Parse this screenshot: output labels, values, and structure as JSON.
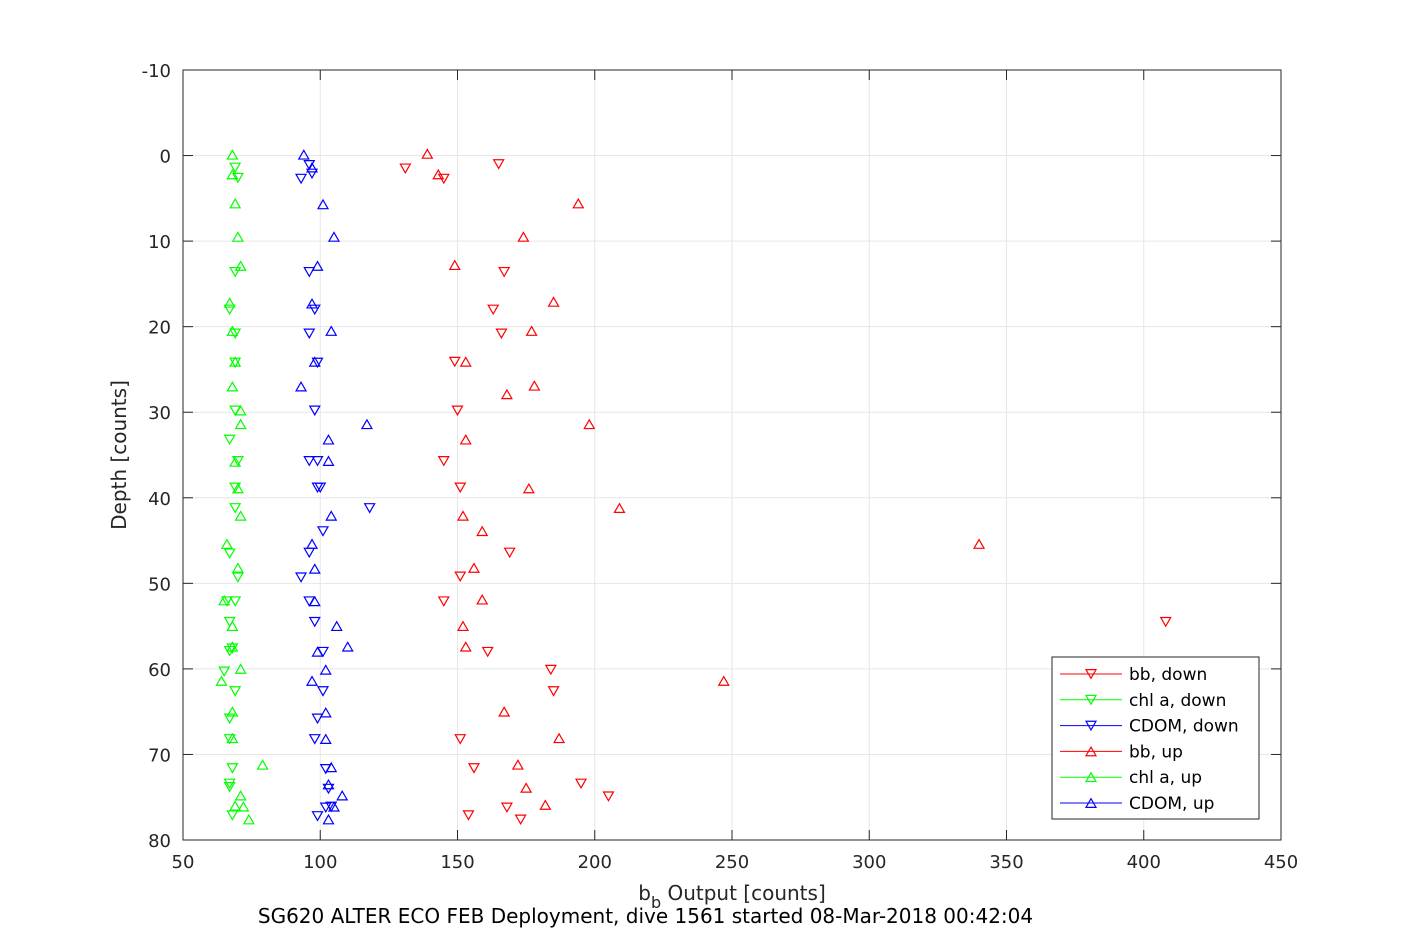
{
  "chart_data": {
    "type": "scatter",
    "xlabel_main": "b",
    "xlabel_sub": "b",
    "xlabel_rest": " Output [counts]",
    "ylabel": "Depth [counts]",
    "xlim": [
      50,
      450
    ],
    "ylim": [
      -10,
      80
    ],
    "y_reversed": true,
    "grid": true,
    "legend_position": "bottom-right",
    "x_ticks": [
      "50",
      "100",
      "150",
      "200",
      "250",
      "300",
      "350",
      "400",
      "450"
    ],
    "y_ticks": [
      "-10",
      "0",
      "10",
      "20",
      "30",
      "40",
      "50",
      "60",
      "70",
      "80"
    ],
    "series": [
      {
        "name": "bb, down",
        "color": "#ff0000",
        "marker": "triangle-down",
        "x": [
          131,
          145,
          165,
          167,
          163,
          166,
          149,
          150,
          145,
          151,
          151,
          169,
          145,
          408,
          161,
          184,
          185,
          151,
          156,
          195,
          205,
          168,
          173,
          154
        ],
        "y": [
          1.5,
          2.7,
          1,
          13.6,
          18,
          20.8,
          24.1,
          29.8,
          35.7,
          38.8,
          49.2,
          46.4,
          52.1,
          54.5,
          58,
          60.1,
          62.6,
          68.2,
          71.6,
          73.4,
          74.9,
          76.2,
          77.6,
          77.1
        ]
      },
      {
        "name": "chl a, down",
        "color": "#00ff00",
        "marker": "triangle-down",
        "x": [
          69,
          70,
          69,
          67,
          69,
          69,
          69,
          70,
          67,
          69,
          69,
          70,
          69,
          67,
          67,
          66,
          68,
          67,
          65,
          69,
          67,
          67,
          68,
          67,
          67,
          68
        ],
        "y": [
          1.4,
          2.6,
          13.6,
          18,
          20.8,
          24.2,
          29.8,
          35.7,
          33.2,
          38.8,
          41.2,
          49.3,
          52.1,
          46.5,
          54.5,
          52.1,
          57.6,
          57.9,
          60.3,
          62.6,
          65.8,
          68.2,
          71.6,
          73.4,
          73.8,
          77.1
        ]
      },
      {
        "name": "CDOM, down",
        "color": "#0000ff",
        "marker": "triangle-down",
        "x": [
          96,
          97,
          93,
          96,
          98,
          96,
          99,
          98,
          99,
          99,
          96,
          100,
          118,
          101,
          96,
          93,
          96,
          98,
          101,
          101,
          99,
          98,
          102,
          103,
          104,
          102,
          99
        ],
        "y": [
          1.1,
          2.1,
          2.7,
          13.6,
          18,
          20.8,
          24.2,
          29.8,
          38.8,
          35.7,
          35.7,
          38.8,
          41.2,
          43.9,
          46.4,
          49.3,
          52.1,
          54.5,
          58,
          62.6,
          65.8,
          68.2,
          71.7,
          74,
          76.1,
          76.2,
          77.2
        ]
      },
      {
        "name": "bb, up",
        "color": "#ff0000",
        "marker": "triangle-up",
        "x": [
          139,
          143,
          194,
          174,
          149,
          185,
          177,
          168,
          178,
          153,
          198,
          176,
          153,
          209,
          152,
          159,
          340,
          156,
          159,
          152,
          153,
          247,
          167,
          187,
          172,
          175,
          182
        ],
        "y": [
          -0.2,
          2.2,
          5.6,
          9.5,
          12.8,
          17.1,
          20.5,
          27.9,
          26.9,
          24.1,
          31.4,
          38.9,
          33.2,
          41.2,
          42.1,
          43.9,
          45.4,
          48.2,
          51.9,
          55,
          57.4,
          61.4,
          65,
          68.1,
          71.2,
          73.9,
          75.9
        ]
      },
      {
        "name": "chl a, up",
        "color": "#00ff00",
        "marker": "triangle-up",
        "x": [
          68,
          68,
          69,
          70,
          71,
          67,
          68,
          69,
          68,
          71,
          71,
          69,
          70,
          71,
          66,
          70,
          65,
          68,
          68,
          71,
          64,
          68,
          68,
          79,
          71,
          69,
          72,
          74
        ],
        "y": [
          -0.1,
          2.2,
          5.6,
          9.5,
          12.9,
          17.2,
          20.5,
          24.1,
          27,
          29.8,
          31.4,
          35.8,
          38.9,
          42.1,
          45.4,
          48.2,
          52,
          55,
          57.4,
          60,
          61.4,
          65,
          68.1,
          71.2,
          74.8,
          76,
          76.1,
          77.6
        ]
      },
      {
        "name": "CDOM, up",
        "color": "#0000ff",
        "marker": "triangle-up",
        "x": [
          94,
          97,
          101,
          105,
          99,
          97,
          104,
          98,
          93,
          117,
          103,
          103,
          104,
          97,
          98,
          98,
          106,
          110,
          99,
          102,
          97,
          102,
          102,
          104,
          103,
          108,
          105,
          103
        ],
        "y": [
          -0.1,
          1.4,
          5.7,
          9.5,
          12.9,
          17.3,
          20.5,
          24.1,
          27,
          31.4,
          33.2,
          35.7,
          42.1,
          45.4,
          48.3,
          52.1,
          55,
          57.4,
          58,
          60.1,
          61.4,
          65.1,
          68.2,
          71.5,
          73.5,
          74.8,
          76.1,
          77.6
        ]
      }
    ]
  },
  "footer_text": "SG620 ALTER ECO FEB Deployment, dive 1561 started 08-Mar-2018 00:42:04"
}
